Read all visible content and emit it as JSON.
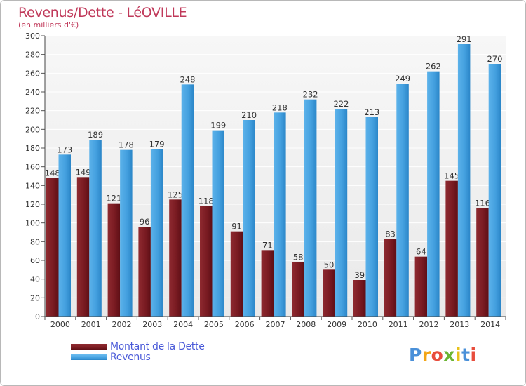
{
  "header": {
    "title": "Revenus/Dette - LéOVILLE",
    "subtitle": "(en milliers d'€)"
  },
  "colors": {
    "dette": "#7f1e24",
    "revenus": "#44a0df",
    "title": "#c0395a",
    "legend_text": "#4a5ad8"
  },
  "legend": {
    "items": [
      {
        "label": "Montant de la Dette",
        "color": "#7f1e24"
      },
      {
        "label": "Revenus",
        "color": "#44a0df"
      }
    ]
  },
  "brand": {
    "letters": [
      {
        "ch": "P",
        "color": "#4a90d9"
      },
      {
        "ch": "r",
        "color": "#f2a516"
      },
      {
        "ch": "o",
        "color": "#e84d3c"
      },
      {
        "ch": "x",
        "color": "#6bb533"
      },
      {
        "ch": "i",
        "color": "#e8c21a"
      },
      {
        "ch": "t",
        "color": "#4a90d9"
      },
      {
        "ch": "i",
        "color": "#e84d3c"
      }
    ]
  },
  "chart_data": {
    "type": "bar",
    "categories": [
      "2000",
      "2001",
      "2002",
      "2003",
      "2004",
      "2005",
      "2006",
      "2007",
      "2008",
      "2009",
      "2010",
      "2011",
      "2012",
      "2013",
      "2014"
    ],
    "series": [
      {
        "name": "Montant de la Dette",
        "values": [
          148,
          149,
          121,
          96,
          125,
          118,
          91,
          71,
          58,
          50,
          39,
          83,
          64,
          145,
          116
        ]
      },
      {
        "name": "Revenus",
        "values": [
          173,
          189,
          178,
          179,
          248,
          199,
          210,
          218,
          232,
          222,
          213,
          249,
          262,
          291,
          270
        ]
      }
    ],
    "ylim": [
      0,
      300
    ],
    "yticks": [
      0,
      20,
      40,
      60,
      80,
      100,
      120,
      140,
      160,
      180,
      200,
      220,
      240,
      260,
      280,
      300
    ],
    "grid": true,
    "legend_position": "bottom-left"
  }
}
